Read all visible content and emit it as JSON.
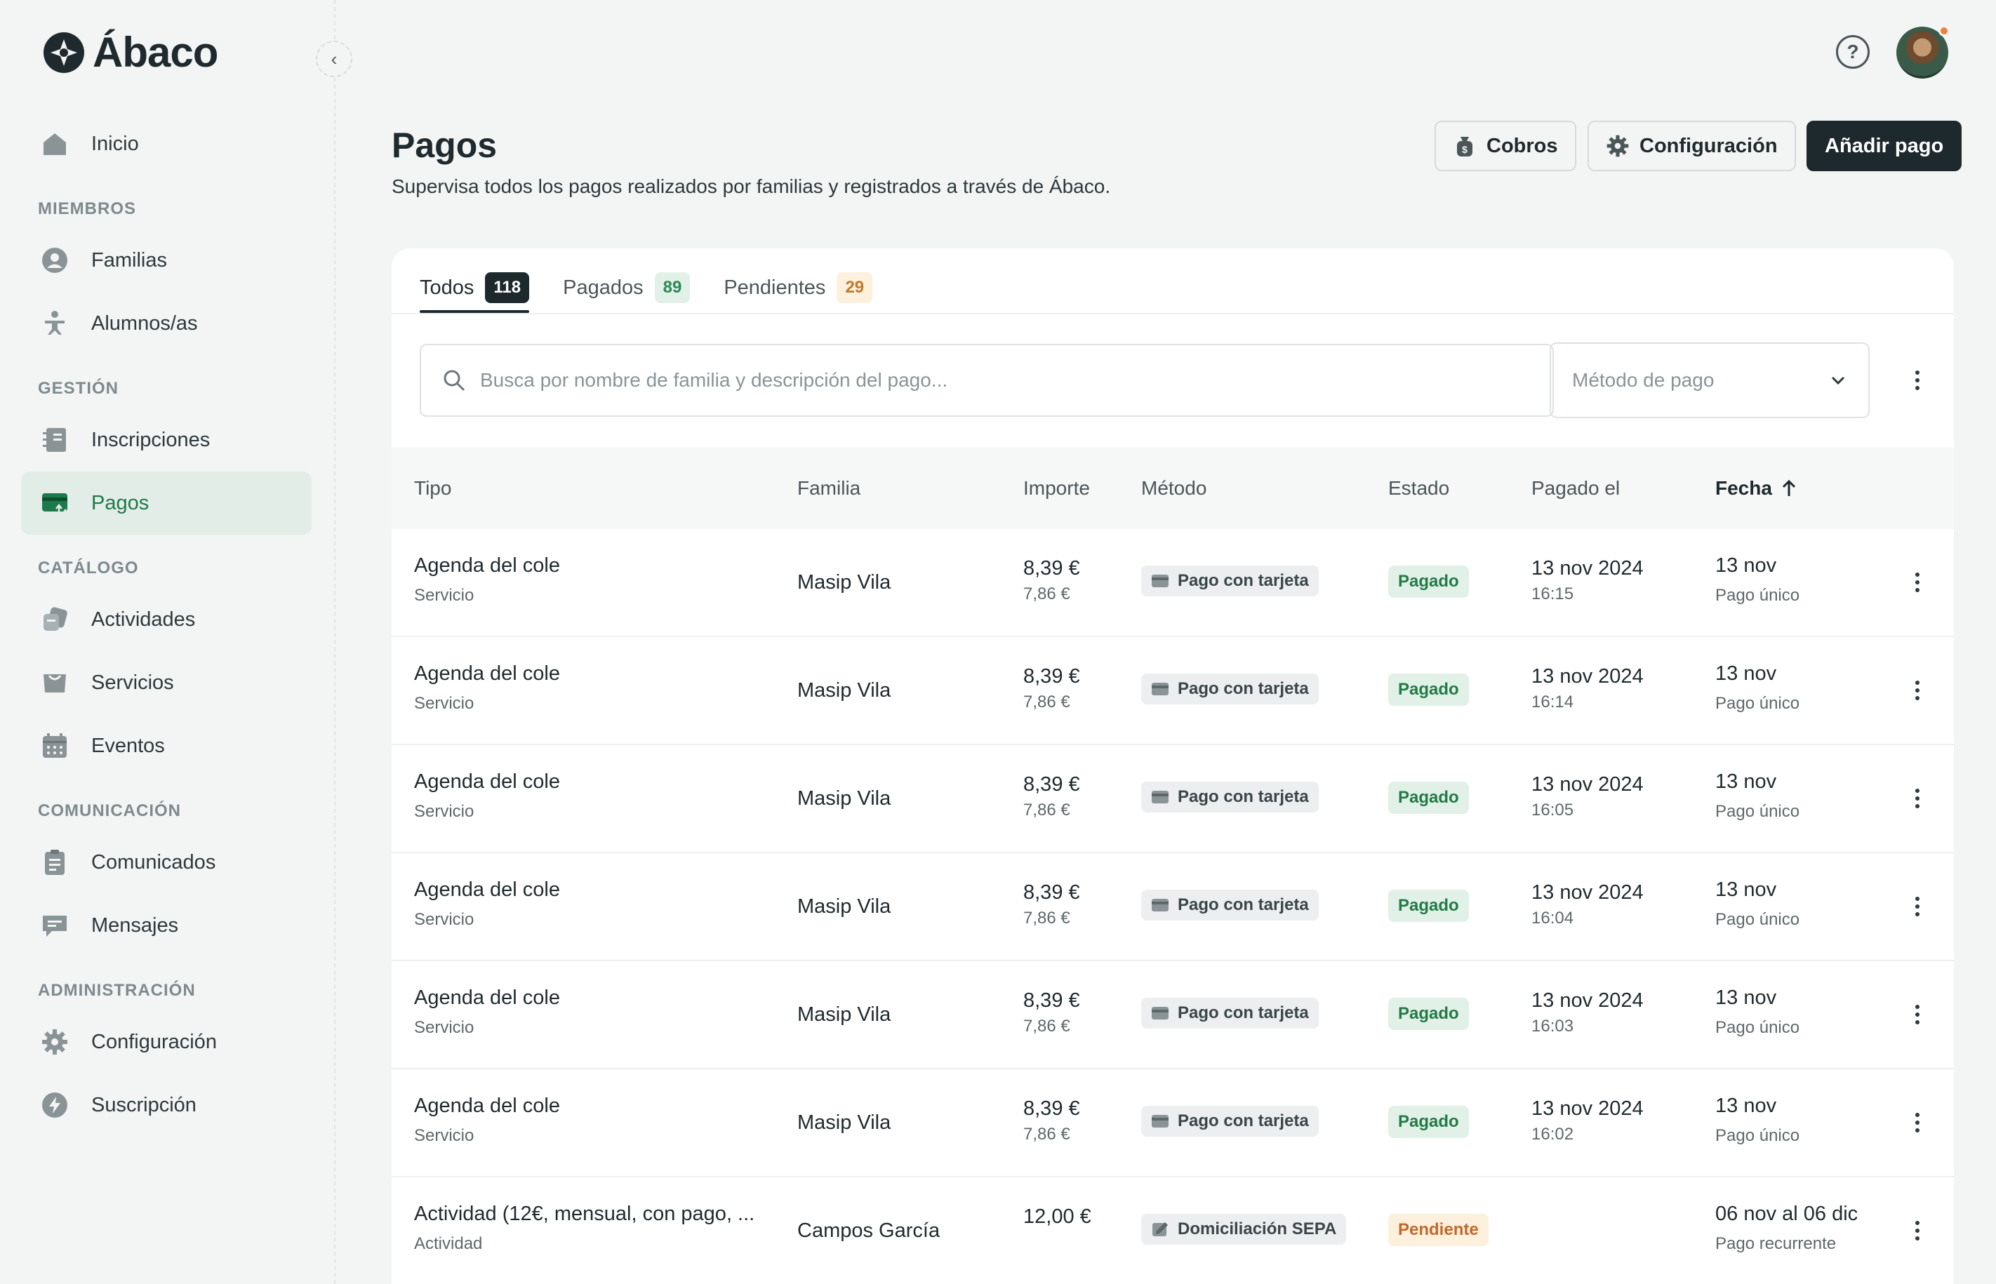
{
  "app": {
    "name": "Ábaco"
  },
  "sidebar": {
    "home": "Inicio",
    "sections": [
      {
        "title": "MIEMBROS",
        "items": [
          "Familias",
          "Alumnos/as"
        ]
      },
      {
        "title": "GESTIÓN",
        "items": [
          "Inscripciones",
          "Pagos"
        ]
      },
      {
        "title": "CATÁLOGO",
        "items": [
          "Actividades",
          "Servicios",
          "Eventos"
        ]
      },
      {
        "title": "COMUNICACIÓN",
        "items": [
          "Comunicados",
          "Mensajes"
        ]
      },
      {
        "title": "ADMINISTRACIÓN",
        "items": [
          "Configuración",
          "Suscripción"
        ]
      }
    ],
    "active": "Pagos"
  },
  "header": {
    "title": "Pagos",
    "subtitle": "Supervisa todos los pagos realizados por familias y registrados a través de Ábaco.",
    "buttons": {
      "cobros": "Cobros",
      "config": "Configuración",
      "add": "Añadir pago"
    }
  },
  "tabs": [
    {
      "label": "Todos",
      "count": "118"
    },
    {
      "label": "Pagados",
      "count": "89"
    },
    {
      "label": "Pendientes",
      "count": "29"
    }
  ],
  "filters": {
    "search_placeholder": "Busca por nombre de familia y descripción del pago...",
    "method_placeholder": "Método de pago"
  },
  "table": {
    "columns": {
      "tipo": "Tipo",
      "familia": "Familia",
      "importe": "Importe",
      "metodo": "Método",
      "estado": "Estado",
      "pagado": "Pagado el",
      "fecha": "Fecha"
    },
    "rows": [
      {
        "tipo": "Agenda del cole",
        "tipo_sub": "Servicio",
        "familia": "Masip Vila",
        "importe": "8,39 €",
        "importe_sub": "7,86 €",
        "metodo": "Pago con tarjeta",
        "estado": "Pagado",
        "pagado": "13 nov 2024",
        "pagado_sub": "16:15",
        "fecha": "13 nov",
        "fecha_sub": "Pago único"
      },
      {
        "tipo": "Agenda del cole",
        "tipo_sub": "Servicio",
        "familia": "Masip Vila",
        "importe": "8,39 €",
        "importe_sub": "7,86 €",
        "metodo": "Pago con tarjeta",
        "estado": "Pagado",
        "pagado": "13 nov 2024",
        "pagado_sub": "16:14",
        "fecha": "13 nov",
        "fecha_sub": "Pago único"
      },
      {
        "tipo": "Agenda del cole",
        "tipo_sub": "Servicio",
        "familia": "Masip Vila",
        "importe": "8,39 €",
        "importe_sub": "7,86 €",
        "metodo": "Pago con tarjeta",
        "estado": "Pagado",
        "pagado": "13 nov 2024",
        "pagado_sub": "16:05",
        "fecha": "13 nov",
        "fecha_sub": "Pago único"
      },
      {
        "tipo": "Agenda del cole",
        "tipo_sub": "Servicio",
        "familia": "Masip Vila",
        "importe": "8,39 €",
        "importe_sub": "7,86 €",
        "metodo": "Pago con tarjeta",
        "estado": "Pagado",
        "pagado": "13 nov 2024",
        "pagado_sub": "16:04",
        "fecha": "13 nov",
        "fecha_sub": "Pago único"
      },
      {
        "tipo": "Agenda del cole",
        "tipo_sub": "Servicio",
        "familia": "Masip Vila",
        "importe": "8,39 €",
        "importe_sub": "7,86 €",
        "metodo": "Pago con tarjeta",
        "estado": "Pagado",
        "pagado": "13 nov 2024",
        "pagado_sub": "16:03",
        "fecha": "13 nov",
        "fecha_sub": "Pago único"
      },
      {
        "tipo": "Agenda del cole",
        "tipo_sub": "Servicio",
        "familia": "Masip Vila",
        "importe": "8,39 €",
        "importe_sub": "7,86 €",
        "metodo": "Pago con tarjeta",
        "estado": "Pagado",
        "pagado": "13 nov 2024",
        "pagado_sub": "16:02",
        "fecha": "13 nov",
        "fecha_sub": "Pago único"
      },
      {
        "tipo": "Actividad (12€, mensual, con pago, ...",
        "tipo_sub": "Actividad",
        "familia": "Campos García",
        "importe": "12,00 €",
        "importe_sub": "",
        "metodo": "Domiciliación SEPA",
        "estado": "Pendiente",
        "pagado": "",
        "pagado_sub": "",
        "fecha": "06 nov al 06 dic",
        "fecha_sub": "Pago recurrente"
      }
    ]
  },
  "colors": {
    "accent": "#1e292d",
    "active_nav_bg": "#e3ede8",
    "active_nav_text": "#1c7a4a",
    "paid": "#237a47",
    "pending": "#c0692c"
  }
}
